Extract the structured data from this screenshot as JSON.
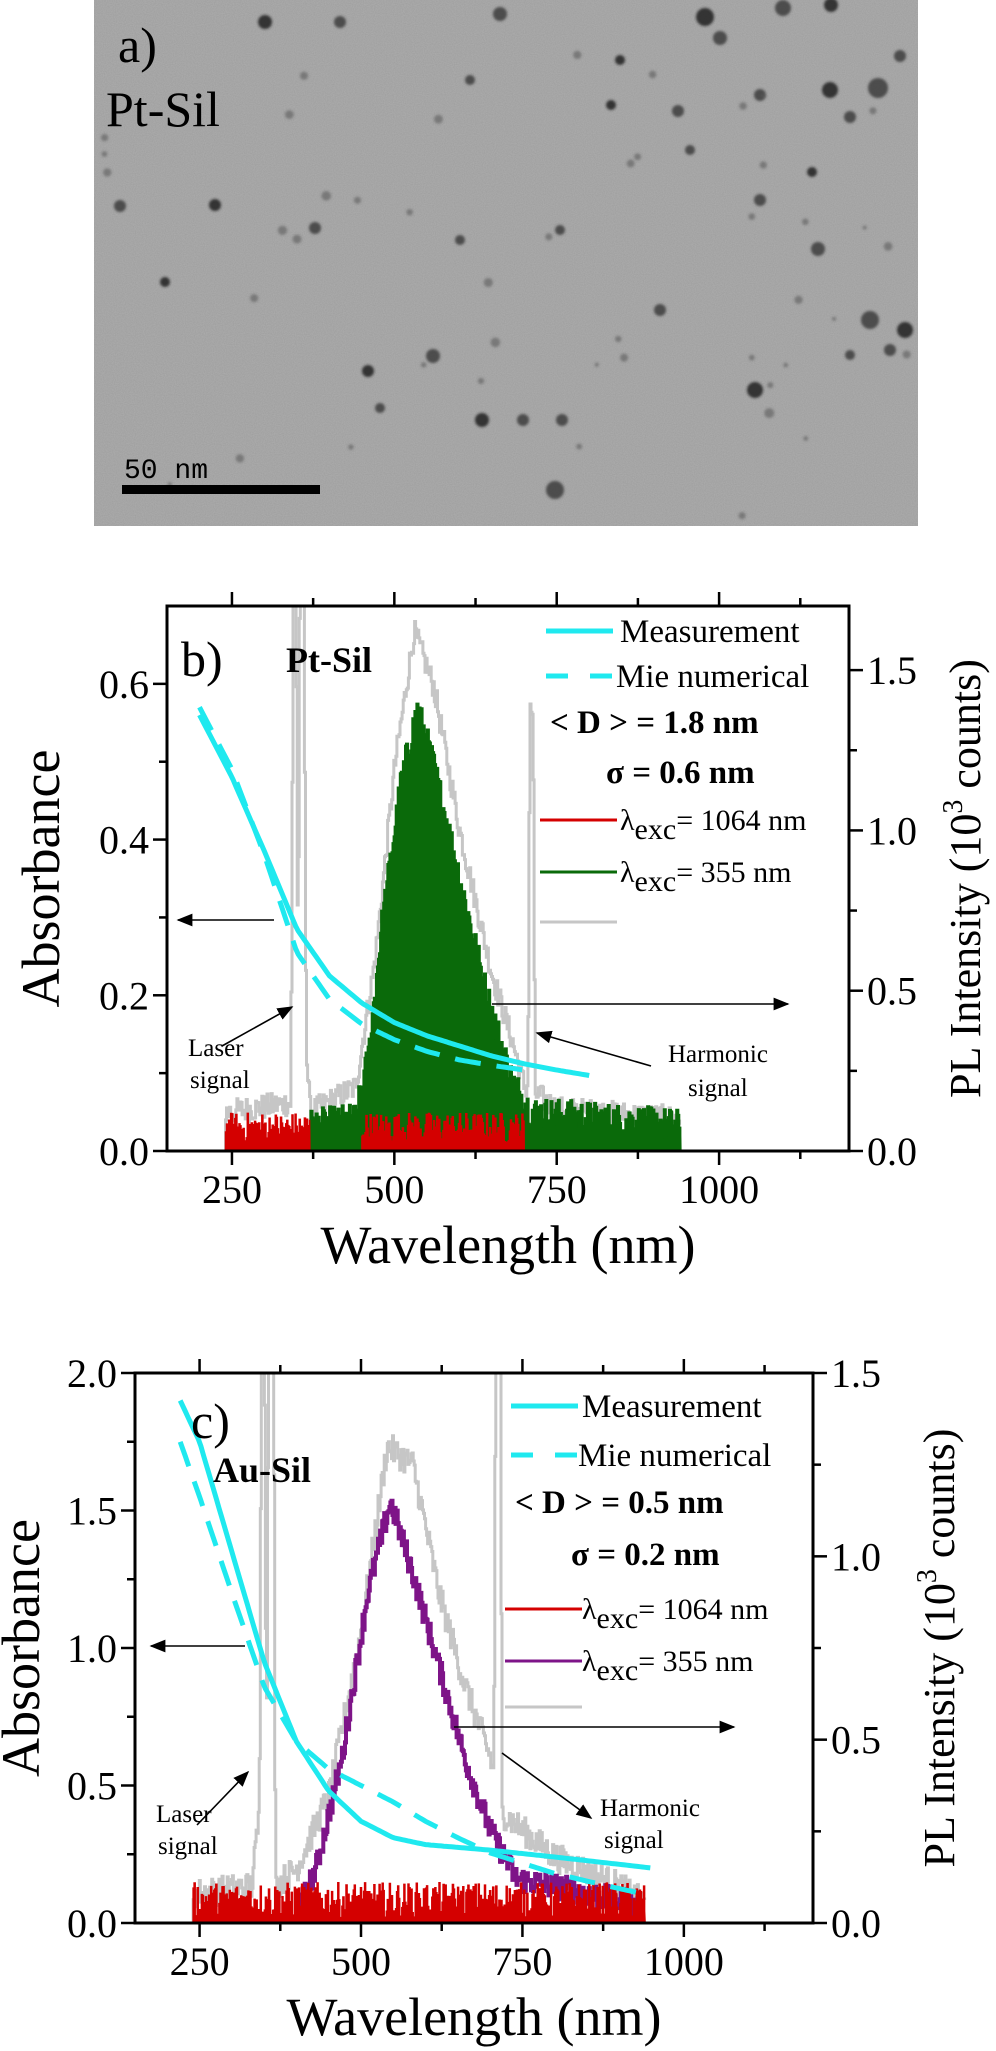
{
  "panel_a": {
    "panel_label": "a)",
    "sample_label": "Pt-Sil",
    "scale_bar_label": "50 nm"
  },
  "colors": {
    "measurement": "#1fe9ef",
    "mie": "#1fe9ef",
    "exc_1064": "#d40000",
    "exc_355_pt": "#0a6a0a",
    "exc_355_au": "#7e1488",
    "background": "#c6c6c6"
  },
  "chart_data": [
    {
      "id": "b",
      "type": "line",
      "panel_label": "b)",
      "sample_label": "Pt-Sil",
      "xlabel": "Wavelength (nm)",
      "ylabel_left": "Absorbance",
      "ylabel_right": {
        "prefix": "PL Intensity (10",
        "sup": "3",
        "suffix": " counts)"
      },
      "xlim": [
        150,
        1200
      ],
      "ylim_left": [
        0,
        0.7
      ],
      "ylim_right": [
        0,
        1.7
      ],
      "xticks": [
        {
          "v": 250,
          "label": "250"
        },
        {
          "v": 500,
          "label": "500"
        },
        {
          "v": 750,
          "label": "750"
        },
        {
          "v": 1000,
          "label": "1000"
        }
      ],
      "xminor": [
        375,
        625,
        875,
        1125
      ],
      "yticks_left": [
        {
          "v": 0,
          "label": "0.0"
        },
        {
          "v": 0.2,
          "label": "0.2"
        },
        {
          "v": 0.4,
          "label": "0.4"
        },
        {
          "v": 0.6,
          "label": "0.6"
        }
      ],
      "yminor_left": [
        0.1,
        0.3,
        0.5
      ],
      "yticks_right": [
        {
          "v": 0,
          "label": "0.0"
        },
        {
          "v": 0.5,
          "label": "0.5"
        },
        {
          "v": 1.0,
          "label": "1.0"
        },
        {
          "v": 1.5,
          "label": "1.5"
        }
      ],
      "yminor_right": [
        0.25,
        0.75,
        1.25
      ],
      "legend": {
        "measurement": "Measurement",
        "mie": "Mie numerical",
        "mean_d": "< D > = 1.8 nm",
        "sigma": "σ = 0.6 nm",
        "exc_1064": {
          "lambda": "λ",
          "sub": "exc",
          "rest": "= 1064 nm"
        },
        "exc_355": {
          "lambda": "λ",
          "sub": "exc",
          "rest": "= 355 nm"
        },
        "background": ""
      },
      "annotations": {
        "laser": [
          "Laser",
          "signal"
        ],
        "harmonic": [
          "Harmonic",
          "signal"
        ]
      },
      "series": {
        "measurement": {
          "axis": "left",
          "points": [
            [
              200,
              0.56
            ],
            [
              250,
              0.48
            ],
            [
              300,
              0.385
            ],
            [
              350,
              0.285
            ],
            [
              400,
              0.225
            ],
            [
              450,
              0.19
            ],
            [
              500,
              0.165
            ],
            [
              550,
              0.148
            ],
            [
              600,
              0.135
            ],
            [
              650,
              0.122
            ],
            [
              700,
              0.112
            ],
            [
              750,
              0.104
            ],
            [
              800,
              0.097
            ]
          ]
        },
        "mie": {
          "axis": "left",
          "points": [
            [
              200,
              0.57
            ],
            [
              250,
              0.49
            ],
            [
              300,
              0.38
            ],
            [
              350,
              0.255
            ],
            [
              400,
              0.195
            ],
            [
              450,
              0.163
            ],
            [
              500,
              0.143
            ],
            [
              550,
              0.128
            ],
            [
              600,
              0.117
            ],
            [
              650,
              0.11
            ],
            [
              700,
              0.104
            ]
          ]
        },
        "background": {
          "axis": "right",
          "noise": 0.04,
          "points": [
            [
              240,
              0.12
            ],
            [
              340,
              0.15
            ],
            [
              344,
              1.8
            ],
            [
              348,
              1.8
            ],
            [
              351,
              0.5
            ],
            [
              354,
              1.8
            ],
            [
              360,
              1.8
            ],
            [
              364,
              0.3
            ],
            [
              370,
              0.12
            ],
            [
              440,
              0.2
            ],
            [
              470,
              0.6
            ],
            [
              500,
              1.2
            ],
            [
              530,
              1.62
            ],
            [
              560,
              1.45
            ],
            [
              600,
              1.0
            ],
            [
              650,
              0.55
            ],
            [
              680,
              0.35
            ],
            [
              700,
              0.2
            ],
            [
              705,
              0.2
            ],
            [
              708,
              1.37
            ],
            [
              713,
              1.37
            ],
            [
              716,
              0.18
            ],
            [
              750,
              0.13
            ],
            [
              940,
              0.1
            ]
          ]
        },
        "exc_355": {
          "axis": "right",
          "noise": 0.05,
          "points": [
            [
              370,
              0.08
            ],
            [
              440,
              0.1
            ],
            [
              460,
              0.3
            ],
            [
              480,
              0.7
            ],
            [
              510,
              1.15
            ],
            [
              535,
              1.38
            ],
            [
              560,
              1.2
            ],
            [
              600,
              0.85
            ],
            [
              640,
              0.5
            ],
            [
              680,
              0.22
            ],
            [
              710,
              0.12
            ],
            [
              940,
              0.08
            ]
          ]
        },
        "exc_1064": {
          "axis": "right",
          "noise": 0.05,
          "level": 0.07,
          "segments": [
            [
              240,
              370
            ],
            [
              450,
              700
            ]
          ]
        }
      }
    },
    {
      "id": "c",
      "type": "line",
      "panel_label": "c)",
      "sample_label": "Au-Sil",
      "xlabel": "Wavelength (nm)",
      "ylabel_left": "Absorbance",
      "ylabel_right": {
        "prefix": "PL Intensity (10",
        "sup": "3",
        "suffix": " counts)"
      },
      "xlim": [
        150,
        1200
      ],
      "ylim_left": [
        0,
        2.0
      ],
      "ylim_right": [
        0,
        1.5
      ],
      "xticks": [
        {
          "v": 250,
          "label": "250"
        },
        {
          "v": 500,
          "label": "500"
        },
        {
          "v": 750,
          "label": "750"
        },
        {
          "v": 1000,
          "label": "1000"
        }
      ],
      "xminor": [
        375,
        625,
        875,
        1125
      ],
      "yticks_left": [
        {
          "v": 0,
          "label": "0.0"
        },
        {
          "v": 0.5,
          "label": "0.5"
        },
        {
          "v": 1.0,
          "label": "1.0"
        },
        {
          "v": 1.5,
          "label": "1.5"
        },
        {
          "v": 2.0,
          "label": "2.0"
        }
      ],
      "yminor_left": [
        0.25,
        0.75,
        1.25,
        1.75
      ],
      "yticks_right": [
        {
          "v": 0,
          "label": "0.0"
        },
        {
          "v": 0.5,
          "label": "0.5"
        },
        {
          "v": 1.0,
          "label": "1.0"
        },
        {
          "v": 1.5,
          "label": "1.5"
        }
      ],
      "yminor_right": [
        0.25,
        0.75,
        1.25
      ],
      "legend": {
        "measurement": "Measurement",
        "mie": "Mie numerical",
        "mean_d": "< D > = 0.5 nm",
        "sigma": "σ = 0.2 nm",
        "exc_1064": {
          "lambda": "λ",
          "sub": "exc",
          "rest": "= 1064 nm"
        },
        "exc_355": {
          "lambda": "λ",
          "sub": "exc",
          "rest": "= 355 nm"
        },
        "background": ""
      },
      "annotations": {
        "laser": [
          "Laser",
          "signal"
        ],
        "harmonic": [
          "Harmonic",
          "signal"
        ]
      },
      "series": {
        "measurement": {
          "axis": "left",
          "points": [
            [
              220,
              1.9
            ],
            [
              250,
              1.75
            ],
            [
              300,
              1.35
            ],
            [
              350,
              0.95
            ],
            [
              400,
              0.66
            ],
            [
              450,
              0.48
            ],
            [
              500,
              0.37
            ],
            [
              550,
              0.31
            ],
            [
              600,
              0.285
            ],
            [
              700,
              0.265
            ],
            [
              800,
              0.24
            ],
            [
              950,
              0.2
            ]
          ]
        },
        "mie": {
          "axis": "left",
          "points": [
            [
              220,
              1.75
            ],
            [
              250,
              1.55
            ],
            [
              300,
              1.2
            ],
            [
              350,
              0.86
            ],
            [
              400,
              0.66
            ],
            [
              450,
              0.56
            ],
            [
              500,
              0.5
            ],
            [
              550,
              0.44
            ],
            [
              600,
              0.37
            ],
            [
              650,
              0.31
            ],
            [
              700,
              0.255
            ],
            [
              800,
              0.18
            ],
            [
              900,
              0.125
            ],
            [
              950,
              0.1
            ]
          ]
        },
        "background": {
          "axis": "right",
          "noise": 0.04,
          "points": [
            [
              240,
              0.08
            ],
            [
              330,
              0.1
            ],
            [
              342,
              0.3
            ],
            [
              345,
              1.6
            ],
            [
              350,
              1.6
            ],
            [
              353,
              0.4
            ],
            [
              356,
              1.6
            ],
            [
              364,
              1.6
            ],
            [
              367,
              0.1
            ],
            [
              400,
              0.15
            ],
            [
              450,
              0.35
            ],
            [
              500,
              0.8
            ],
            [
              540,
              1.3
            ],
            [
              580,
              1.25
            ],
            [
              620,
              0.9
            ],
            [
              660,
              0.65
            ],
            [
              700,
              0.45
            ],
            [
              705,
              0.4
            ],
            [
              708,
              1.6
            ],
            [
              715,
              1.6
            ],
            [
              718,
              0.3
            ],
            [
              800,
              0.18
            ],
            [
              900,
              0.1
            ],
            [
              940,
              0.05
            ]
          ]
        },
        "exc_355": {
          "axis": "right",
          "noise": 0.035,
          "points": [
            [
              400,
              0.02
            ],
            [
              430,
              0.15
            ],
            [
              470,
              0.45
            ],
            [
              510,
              0.9
            ],
            [
              545,
              1.15
            ],
            [
              580,
              0.95
            ],
            [
              620,
              0.7
            ],
            [
              660,
              0.45
            ],
            [
              700,
              0.25
            ],
            [
              740,
              0.12
            ],
            [
              800,
              0.1
            ],
            [
              900,
              0.06
            ],
            [
              930,
              0.04
            ]
          ]
        },
        "exc_1064": {
          "axis": "right",
          "noise": 0.05,
          "level": 0.06,
          "segments": [
            [
              240,
              940
            ]
          ]
        }
      }
    }
  ]
}
